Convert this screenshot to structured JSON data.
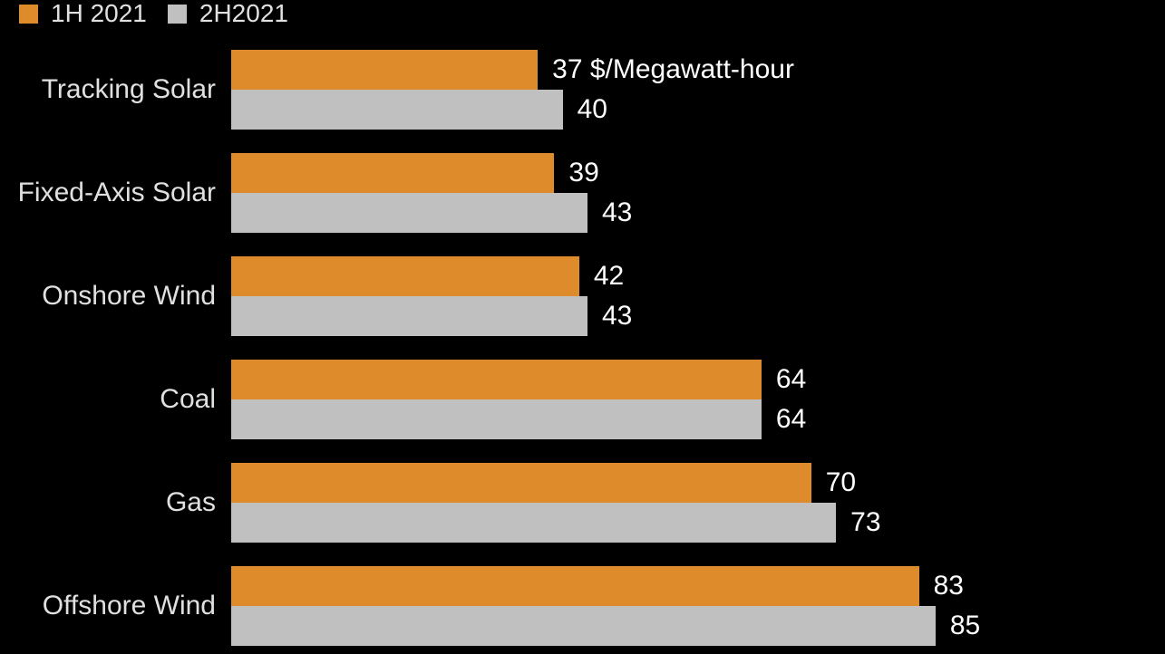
{
  "chart_data": {
    "type": "bar",
    "orientation": "horizontal",
    "title": "",
    "unit_label": "$/Megawatt-hour",
    "categories": [
      "Tracking Solar",
      "Fixed-Axis Solar",
      "Onshore Wind",
      "Coal",
      "Gas",
      "Offshore Wind"
    ],
    "series": [
      {
        "name": "1H 2021",
        "color": "#DD8B2B",
        "values": [
          37,
          39,
          42,
          64,
          70,
          83
        ],
        "value_labels": [
          "37 $/Megawatt-hour",
          "39",
          "42",
          "64",
          "70",
          "83"
        ]
      },
      {
        "name": "2H2021",
        "color": "#C0C0C0",
        "values": [
          40,
          43,
          43,
          64,
          73,
          85
        ],
        "value_labels": [
          "40",
          "43",
          "43",
          "64",
          "73",
          "85"
        ]
      }
    ],
    "xlim": [
      0,
      112.7
    ],
    "grid": false,
    "legend_position": "top-left",
    "background": "#000000",
    "text_colors": {
      "category_label": "#E0E0E0",
      "value_label": "#FFFFFF",
      "legend_label": "#E0E0E0"
    }
  }
}
